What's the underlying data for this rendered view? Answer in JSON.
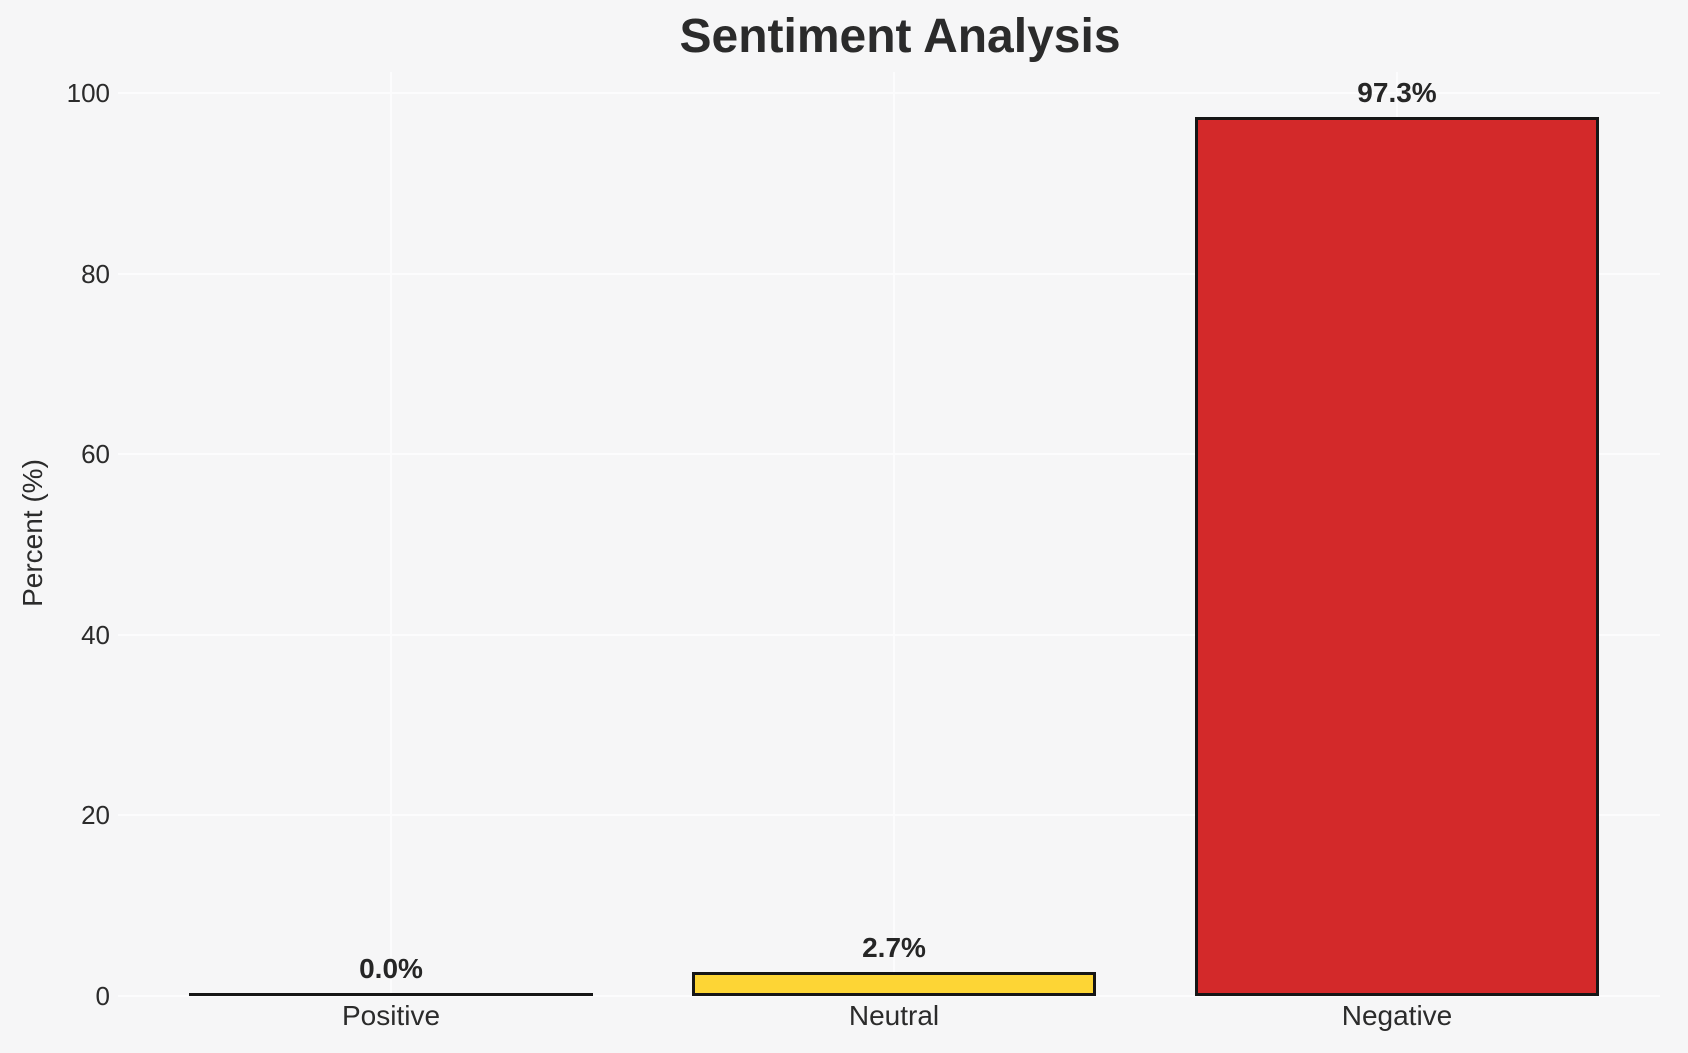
{
  "chart_data": {
    "type": "bar",
    "title": "Sentiment Analysis",
    "ylabel": "Percent (%)",
    "xlabel": "",
    "categories": [
      "Positive",
      "Neutral",
      "Negative"
    ],
    "values": [
      0.0,
      2.7,
      97.3
    ],
    "value_labels": [
      "0.0%",
      "2.7%",
      "97.3%"
    ],
    "bar_colors": [
      "none",
      "#FDD535",
      "#D3292A"
    ],
    "bar_edge_color": "#161616",
    "yticks": [
      0,
      20,
      40,
      60,
      80,
      100
    ],
    "ylim": [
      0,
      100
    ],
    "grid": true,
    "legend": "none",
    "background_color": "#F6F6F7",
    "grid_color": "#FCFCFD",
    "text_color": "#2B2B2B"
  }
}
